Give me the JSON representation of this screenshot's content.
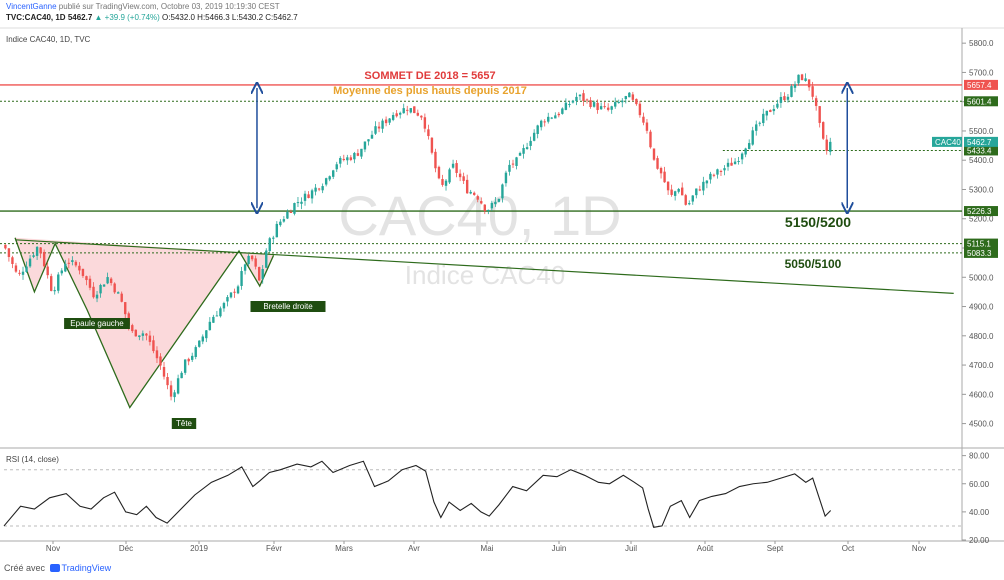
{
  "header": {
    "author": "VincentGanne",
    "published": "publié sur TradingView.com, Octobre 03, 2019 10:19:30 CEST",
    "symbol": "TVC:CAC40, 1D",
    "last": "5462.7",
    "change": "▲ +39.9 (+0.74%)",
    "ohlc": "O:5432.0 H:5466.3 L:5430.2 C:5462.7"
  },
  "pane_labels": {
    "main": "Indice CAC40, 1D, TVC",
    "rsi": "RSI (14, close)"
  },
  "footer": {
    "created": "Créé avec",
    "brand": "TradingView"
  },
  "chart_data": [
    {
      "type": "candlestick",
      "title": "Indice CAC40, 1D, TVC",
      "watermark": [
        "CAC40, 1D",
        "Indice CAC40"
      ],
      "x_ticks": [
        "Nov",
        "Déc",
        "2019",
        "Févr",
        "Mars",
        "Avr",
        "Mai",
        "Juin",
        "Juil",
        "Août",
        "Sept",
        "Oct",
        "Nov"
      ],
      "y_ticks": [
        4500,
        4600,
        4700,
        4800,
        4900,
        5000,
        5100,
        5200,
        5300,
        5400,
        5500,
        5600,
        5700,
        5800
      ],
      "ylim": [
        4420,
        5845
      ],
      "close_path": [
        {
          "d": 0,
          "v": 5110
        },
        {
          "d": 10,
          "v": 5000
        },
        {
          "d": 18,
          "v": 5060
        },
        {
          "d": 25,
          "v": 5110
        },
        {
          "d": 35,
          "v": 4950
        },
        {
          "d": 45,
          "v": 5060
        },
        {
          "d": 55,
          "v": 5030
        },
        {
          "d": 65,
          "v": 4940
        },
        {
          "d": 75,
          "v": 5000
        },
        {
          "d": 84,
          "v": 4930
        },
        {
          "d": 92,
          "v": 4810
        },
        {
          "d": 102,
          "v": 4810
        },
        {
          "d": 113,
          "v": 4700
        },
        {
          "d": 121,
          "v": 4590
        },
        {
          "d": 130,
          "v": 4700
        },
        {
          "d": 140,
          "v": 4760
        },
        {
          "d": 150,
          "v": 4860
        },
        {
          "d": 160,
          "v": 4910
        },
        {
          "d": 170,
          "v": 4980
        },
        {
          "d": 175,
          "v": 5060
        },
        {
          "d": 180,
          "v": 5060
        },
        {
          "d": 185,
          "v": 4980
        },
        {
          "d": 190,
          "v": 5100
        },
        {
          "d": 198,
          "v": 5180
        },
        {
          "d": 210,
          "v": 5250
        },
        {
          "d": 222,
          "v": 5290
        },
        {
          "d": 232,
          "v": 5330
        },
        {
          "d": 240,
          "v": 5390
        },
        {
          "d": 255,
          "v": 5420
        },
        {
          "d": 268,
          "v": 5500
        },
        {
          "d": 282,
          "v": 5560
        },
        {
          "d": 292,
          "v": 5580
        },
        {
          "d": 303,
          "v": 5550
        },
        {
          "d": 309,
          "v": 5430
        },
        {
          "d": 316,
          "v": 5300
        },
        {
          "d": 325,
          "v": 5380
        },
        {
          "d": 335,
          "v": 5300
        },
        {
          "d": 342,
          "v": 5280
        },
        {
          "d": 349,
          "v": 5230
        },
        {
          "d": 357,
          "v": 5260
        },
        {
          "d": 365,
          "v": 5380
        },
        {
          "d": 372,
          "v": 5400
        },
        {
          "d": 380,
          "v": 5470
        },
        {
          "d": 390,
          "v": 5540
        },
        {
          "d": 401,
          "v": 5560
        },
        {
          "d": 415,
          "v": 5620
        },
        {
          "d": 430,
          "v": 5580
        },
        {
          "d": 437,
          "v": 5570
        },
        {
          "d": 446,
          "v": 5600
        },
        {
          "d": 452,
          "v": 5620
        },
        {
          "d": 460,
          "v": 5560
        },
        {
          "d": 465,
          "v": 5510
        },
        {
          "d": 470,
          "v": 5400
        },
        {
          "d": 476,
          "v": 5350
        },
        {
          "d": 482,
          "v": 5270
        },
        {
          "d": 488,
          "v": 5310
        },
        {
          "d": 494,
          "v": 5240
        },
        {
          "d": 500,
          "v": 5290
        },
        {
          "d": 510,
          "v": 5340
        },
        {
          "d": 520,
          "v": 5370
        },
        {
          "d": 530,
          "v": 5400
        },
        {
          "d": 540,
          "v": 5480
        },
        {
          "d": 550,
          "v": 5550
        },
        {
          "d": 560,
          "v": 5600
        },
        {
          "d": 568,
          "v": 5630
        },
        {
          "d": 576,
          "v": 5690
        },
        {
          "d": 582,
          "v": 5660
        },
        {
          "d": 586,
          "v": 5610
        },
        {
          "d": 588,
          "v": 5560
        },
        {
          "d": 592,
          "v": 5470
        },
        {
          "d": 595,
          "v": 5430
        },
        {
          "d": 598,
          "v": 5462.7
        }
      ],
      "inverted_head_and_shoulders": [
        {
          "d": 8,
          "v": 5135
        },
        {
          "d": 22,
          "v": 4950
        },
        {
          "d": 37,
          "v": 5115
        },
        {
          "d": 60,
          "v": 4890
        },
        {
          "d": 91,
          "v": 4555
        },
        {
          "d": 170,
          "v": 5090
        },
        {
          "d": 185,
          "v": 4970
        },
        {
          "d": 195,
          "v": 5075
        }
      ],
      "neckline": {
        "from": {
          "d": 8,
          "v": 5128
        },
        "to": {
          "d": 687,
          "v": 4945
        }
      },
      "levels": [
        {
          "value": 5657.4,
          "label": "5657.4",
          "style": "solid",
          "color": "#ef5350",
          "badge": "#ef5350"
        },
        {
          "value": 5601.4,
          "label": "5601.4",
          "style": "dotted",
          "color": "#2e6b1c",
          "badge": "#2e6b1c"
        },
        {
          "value": 5433.4,
          "label": "5433.4",
          "style": "dotted",
          "color": "#2e6b1c",
          "badge": "#2e6b1c",
          "from_d": 520
        },
        {
          "value": 5226.3,
          "label": "5226.3",
          "style": "solid",
          "color": "#2e6b1c",
          "badge": "#2e6b1c"
        },
        {
          "value": 5115.1,
          "label": "5115.1",
          "style": "dotted",
          "color": "#2e6b1c",
          "badge": "#2e6b1c"
        },
        {
          "value": 5083.3,
          "label": "5083.3",
          "style": "dotted",
          "color": "#2e6b1c",
          "badge": "#2e6b1c"
        }
      ],
      "price_badge": {
        "symbol": "CAC40",
        "value": "5462.7",
        "color": "#26a69a"
      },
      "annotations": {
        "top_2018": "SOMMET DE 2018 = 5657",
        "avg_highs": "Moyenne des plus hauts depuis 2017",
        "zone_1": "5150/5200",
        "zone_2": "5050/5100",
        "left_shoulder": "Epaule gauche",
        "head": "Tête",
        "right_shoulder": "Bretelle droite"
      },
      "arrows": [
        {
          "d": 183,
          "from": 5226,
          "to": 5657
        },
        {
          "d": 610,
          "from": 5226,
          "to": 5657
        }
      ]
    },
    {
      "type": "line",
      "title": "RSI (14, close)",
      "y_ticks": [
        20,
        40,
        60,
        80
      ],
      "ylim": [
        20,
        84
      ],
      "bands": [
        70,
        30
      ],
      "path": [
        {
          "d": 0,
          "v": 30
        },
        {
          "d": 12,
          "v": 44
        },
        {
          "d": 22,
          "v": 42
        },
        {
          "d": 33,
          "v": 50
        },
        {
          "d": 45,
          "v": 53
        },
        {
          "d": 55,
          "v": 44
        },
        {
          "d": 63,
          "v": 42
        },
        {
          "d": 72,
          "v": 50
        },
        {
          "d": 80,
          "v": 54
        },
        {
          "d": 88,
          "v": 40
        },
        {
          "d": 96,
          "v": 38
        },
        {
          "d": 103,
          "v": 44
        },
        {
          "d": 110,
          "v": 36
        },
        {
          "d": 118,
          "v": 32
        },
        {
          "d": 126,
          "v": 40
        },
        {
          "d": 138,
          "v": 52
        },
        {
          "d": 150,
          "v": 61
        },
        {
          "d": 162,
          "v": 66
        },
        {
          "d": 172,
          "v": 72
        },
        {
          "d": 180,
          "v": 58
        },
        {
          "d": 185,
          "v": 62
        },
        {
          "d": 192,
          "v": 68
        },
        {
          "d": 200,
          "v": 70
        },
        {
          "d": 212,
          "v": 74
        },
        {
          "d": 222,
          "v": 72
        },
        {
          "d": 230,
          "v": 76
        },
        {
          "d": 238,
          "v": 68
        },
        {
          "d": 250,
          "v": 73
        },
        {
          "d": 260,
          "v": 76
        },
        {
          "d": 268,
          "v": 58
        },
        {
          "d": 278,
          "v": 62
        },
        {
          "d": 288,
          "v": 70
        },
        {
          "d": 298,
          "v": 73
        },
        {
          "d": 305,
          "v": 69
        },
        {
          "d": 311,
          "v": 47
        },
        {
          "d": 316,
          "v": 36
        },
        {
          "d": 322,
          "v": 47
        },
        {
          "d": 330,
          "v": 41
        },
        {
          "d": 338,
          "v": 46
        },
        {
          "d": 345,
          "v": 40
        },
        {
          "d": 351,
          "v": 37
        },
        {
          "d": 358,
          "v": 45
        },
        {
          "d": 368,
          "v": 58
        },
        {
          "d": 378,
          "v": 55
        },
        {
          "d": 390,
          "v": 66
        },
        {
          "d": 400,
          "v": 65
        },
        {
          "d": 410,
          "v": 70
        },
        {
          "d": 420,
          "v": 66
        },
        {
          "d": 430,
          "v": 61
        },
        {
          "d": 438,
          "v": 60
        },
        {
          "d": 448,
          "v": 66
        },
        {
          "d": 456,
          "v": 61
        },
        {
          "d": 462,
          "v": 57
        },
        {
          "d": 466,
          "v": 42
        },
        {
          "d": 470,
          "v": 29
        },
        {
          "d": 476,
          "v": 30
        },
        {
          "d": 482,
          "v": 44
        },
        {
          "d": 490,
          "v": 48
        },
        {
          "d": 496,
          "v": 36
        },
        {
          "d": 503,
          "v": 48
        },
        {
          "d": 512,
          "v": 51
        },
        {
          "d": 522,
          "v": 53
        },
        {
          "d": 532,
          "v": 58
        },
        {
          "d": 542,
          "v": 60
        },
        {
          "d": 552,
          "v": 61
        },
        {
          "d": 562,
          "v": 64
        },
        {
          "d": 572,
          "v": 67
        },
        {
          "d": 580,
          "v": 61
        },
        {
          "d": 585,
          "v": 64
        },
        {
          "d": 590,
          "v": 49
        },
        {
          "d": 594,
          "v": 37
        },
        {
          "d": 598,
          "v": 41
        }
      ]
    }
  ]
}
